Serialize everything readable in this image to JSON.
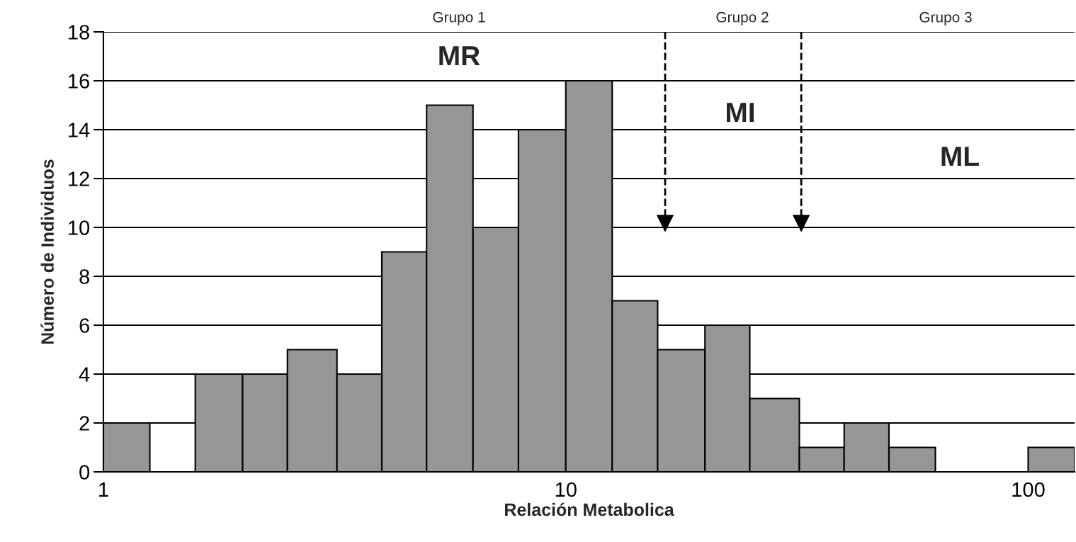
{
  "chart_data": {
    "type": "histogram",
    "xlabel": "Relación Metabolica",
    "ylabel": "Número de Individuos",
    "bins": [
      1,
      1.26,
      1.58,
      2,
      2.5,
      3.2,
      4,
      5,
      6.3,
      7.9,
      10,
      12.6,
      15.8,
      20,
      25,
      32,
      40,
      50,
      63,
      100,
      126
    ],
    "values": [
      2,
      0,
      4,
      4,
      5,
      4,
      9,
      15,
      10,
      14,
      16,
      7,
      5,
      6,
      3,
      1,
      2,
      1,
      0,
      1
    ],
    "color": "#969696",
    "log": "x",
    "xlim": [
      1,
      126
    ],
    "xticks": [
      1,
      10,
      100
    ],
    "ylim": [
      0,
      18
    ],
    "yticks": [
      0,
      2,
      4,
      6,
      8,
      10,
      12,
      14,
      16,
      18
    ],
    "grid": "y",
    "ref_lines": [
      {
        "axis": "x",
        "value": 16.4,
        "line_style": "dashed",
        "color": "#000000"
      },
      {
        "axis": "x",
        "value": 32.3,
        "line_style": "dashed",
        "color": "#000000"
      }
    ],
    "annotations": [
      "Grupo 1",
      "Grupo 2",
      "Grupo 3",
      "MR",
      "MI",
      "ML"
    ]
  }
}
